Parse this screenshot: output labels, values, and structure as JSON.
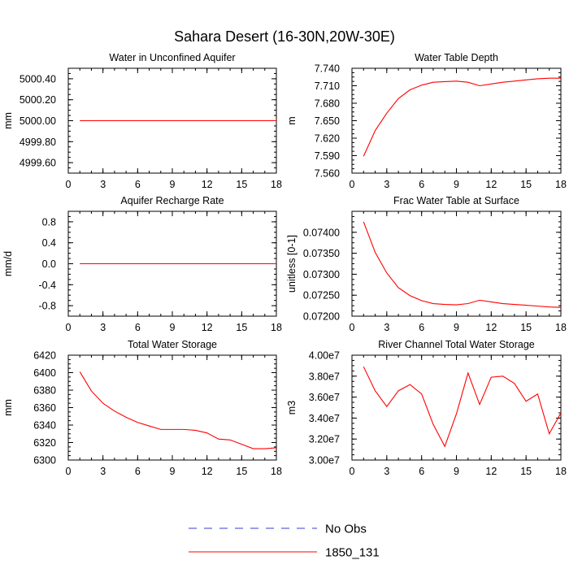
{
  "figure": {
    "title": "Sahara Desert (16-30N,20W-30E)",
    "legend": [
      {
        "label": "No Obs",
        "color": "#3b3bd0",
        "dash": true
      },
      {
        "label": "1850_131",
        "color": "#ff0000",
        "dash": false
      }
    ]
  },
  "chart_data": [
    {
      "type": "line",
      "title": "Water in Unconfined Aquifer",
      "ylabel": "mm",
      "xlim": [
        0,
        18
      ],
      "xticks": [
        0,
        3,
        6,
        9,
        12,
        15,
        18
      ],
      "ylim": [
        4999.5,
        5000.5
      ],
      "yticks": [
        "4999.60",
        "4999.80",
        "5000.00",
        "5000.20",
        "5000.40"
      ],
      "yticks_values": [
        4999.6,
        4999.8,
        5000.0,
        5000.2,
        5000.4
      ],
      "series": [
        {
          "name": "1850_131",
          "color": "#ff0000",
          "x": [
            1,
            2,
            3,
            4,
            5,
            6,
            7,
            8,
            9,
            10,
            11,
            12,
            13,
            14,
            15,
            16,
            17,
            18
          ],
          "y": [
            5000,
            5000,
            5000,
            5000,
            5000,
            5000,
            5000,
            5000,
            5000,
            5000,
            5000,
            5000,
            5000,
            5000,
            5000,
            5000,
            5000,
            5000
          ]
        }
      ]
    },
    {
      "type": "line",
      "title": "Water Table Depth",
      "ylabel": "m",
      "xlim": [
        0,
        18
      ],
      "xticks": [
        0,
        3,
        6,
        9,
        12,
        15,
        18
      ],
      "ylim": [
        7.56,
        7.74
      ],
      "yticks": [
        "7.560",
        "7.590",
        "7.620",
        "7.650",
        "7.680",
        "7.710",
        "7.740"
      ],
      "yticks_values": [
        7.56,
        7.59,
        7.62,
        7.65,
        7.68,
        7.71,
        7.74
      ],
      "series": [
        {
          "name": "1850_131",
          "color": "#ff0000",
          "x": [
            1,
            2,
            3,
            4,
            5,
            6,
            7,
            8,
            9,
            10,
            11,
            12,
            13,
            14,
            15,
            16,
            17,
            18
          ],
          "y": [
            7.589,
            7.633,
            7.663,
            7.688,
            7.703,
            7.711,
            7.716,
            7.717,
            7.718,
            7.716,
            7.71,
            7.713,
            7.716,
            7.718,
            7.72,
            7.722,
            7.723,
            7.723
          ]
        }
      ]
    },
    {
      "type": "line",
      "title": "Aquifer Recharge Rate",
      "ylabel": "mm/d",
      "xlim": [
        0,
        18
      ],
      "xticks": [
        0,
        3,
        6,
        9,
        12,
        15,
        18
      ],
      "ylim": [
        -1.0,
        1.0
      ],
      "yticks": [
        "-0.8",
        "-0.4",
        "0.0",
        "0.4",
        "0.8"
      ],
      "yticks_values": [
        -0.8,
        -0.4,
        0.0,
        0.4,
        0.8
      ],
      "series": [
        {
          "name": "1850_131",
          "color": "#ff0000",
          "x": [
            1,
            2,
            3,
            4,
            5,
            6,
            7,
            8,
            9,
            10,
            11,
            12,
            13,
            14,
            15,
            16,
            17,
            18
          ],
          "y": [
            0,
            0,
            0,
            0,
            0,
            0,
            0,
            0,
            0,
            0,
            0,
            0,
            0,
            0,
            0,
            0,
            0,
            0
          ]
        }
      ]
    },
    {
      "type": "line",
      "title": "Frac Water Table at Surface",
      "ylabel": "unitless [0-1]",
      "xlim": [
        0,
        18
      ],
      "xticks": [
        0,
        3,
        6,
        9,
        12,
        15,
        18
      ],
      "ylim": [
        0.072,
        0.0745
      ],
      "yticks": [
        "0.07200",
        "0.07250",
        "0.07300",
        "0.07350",
        "0.07400"
      ],
      "yticks_values": [
        0.072,
        0.0725,
        0.073,
        0.0735,
        0.074
      ],
      "series": [
        {
          "name": "1850_131",
          "color": "#ff0000",
          "x": [
            1,
            2,
            3,
            4,
            5,
            6,
            7,
            8,
            9,
            10,
            11,
            12,
            13,
            14,
            15,
            16,
            17,
            18
          ],
          "y": [
            0.07425,
            0.07352,
            0.07303,
            0.07268,
            0.07249,
            0.07237,
            0.0723,
            0.07228,
            0.07227,
            0.0723,
            0.07238,
            0.07234,
            0.0723,
            0.07228,
            0.07226,
            0.07224,
            0.07222,
            0.07221
          ]
        }
      ]
    },
    {
      "type": "line",
      "title": "Total Water Storage",
      "ylabel": "mm",
      "xlim": [
        0,
        18
      ],
      "xticks": [
        0,
        3,
        6,
        9,
        12,
        15,
        18
      ],
      "ylim": [
        6300,
        6420
      ],
      "yticks": [
        "6300",
        "6320",
        "6340",
        "6360",
        "6380",
        "6400",
        "6420"
      ],
      "yticks_values": [
        6300,
        6320,
        6340,
        6360,
        6380,
        6400,
        6420
      ],
      "series": [
        {
          "name": "1850_131",
          "color": "#ff0000",
          "x": [
            1,
            2,
            3,
            4,
            5,
            6,
            7,
            8,
            9,
            10,
            11,
            12,
            13,
            14,
            15,
            16,
            17,
            18
          ],
          "y": [
            6401,
            6379,
            6365,
            6356,
            6349,
            6343,
            6339,
            6335,
            6335,
            6335,
            6334,
            6331,
            6324,
            6323,
            6318,
            6313,
            6313,
            6314
          ]
        }
      ]
    },
    {
      "type": "line",
      "title": "River Channel Total Water Storage",
      "ylabel": "m3",
      "xlim": [
        0,
        18
      ],
      "xticks": [
        0,
        3,
        6,
        9,
        12,
        15,
        18
      ],
      "ylim": [
        30000000,
        40000000
      ],
      "yticks": [
        "3.00e7",
        "3.20e7",
        "3.40e7",
        "3.60e7",
        "3.80e7",
        "4.00e7"
      ],
      "yticks_values": [
        30000000,
        32000000,
        34000000,
        36000000,
        38000000,
        40000000
      ],
      "series": [
        {
          "name": "1850_131",
          "color": "#ff0000",
          "x": [
            1,
            2,
            3,
            4,
            5,
            6,
            7,
            8,
            9,
            10,
            11,
            12,
            13,
            14,
            15,
            16,
            17,
            18
          ],
          "y": [
            38900000,
            36600000,
            35100000,
            36600000,
            37200000,
            36300000,
            33400000,
            31300000,
            34400000,
            38300000,
            35300000,
            37900000,
            38000000,
            37300000,
            35600000,
            36300000,
            32500000,
            34500000
          ]
        }
      ]
    }
  ]
}
